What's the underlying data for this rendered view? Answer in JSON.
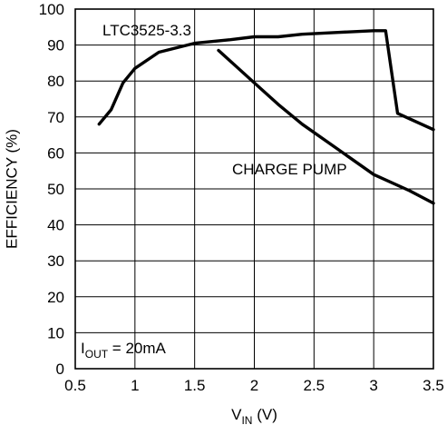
{
  "chart_data": {
    "type": "line",
    "title": "",
    "xlabel": {
      "main": "V",
      "sub": "IN",
      "unit": " (V)"
    },
    "ylabel": "EFFICIENCY (%)",
    "xlim": [
      0.5,
      3.5
    ],
    "ylim": [
      0,
      100
    ],
    "x_ticks": [
      "0.5",
      "1",
      "1.5",
      "2",
      "2.5",
      "3",
      "3.5"
    ],
    "y_ticks": [
      "0",
      "10",
      "20",
      "30",
      "40",
      "50",
      "60",
      "70",
      "80",
      "90",
      "100"
    ],
    "grid": true,
    "series": [
      {
        "name": "LTC3525-3.3",
        "x": [
          0.7,
          0.8,
          0.9,
          1.0,
          1.2,
          1.5,
          1.8,
          2.0,
          2.2,
          2.4,
          2.7,
          3.0,
          3.1,
          3.2,
          3.3,
          3.5
        ],
        "y": [
          68,
          72,
          79.5,
          83.5,
          88,
          90.5,
          91.5,
          92.3,
          92.3,
          93,
          93.5,
          94,
          94,
          71,
          69.5,
          66.5
        ]
      },
      {
        "name": "CHARGE PUMP",
        "x": [
          1.7,
          2.0,
          2.2,
          2.4,
          2.7,
          3.0,
          3.3,
          3.5
        ],
        "y": [
          88.5,
          79.5,
          73.5,
          68,
          61,
          54,
          49.5,
          46
        ]
      }
    ],
    "annotations": {
      "condition": {
        "main": "I",
        "sub": "OUT",
        "rest": " = 20mA"
      }
    }
  }
}
